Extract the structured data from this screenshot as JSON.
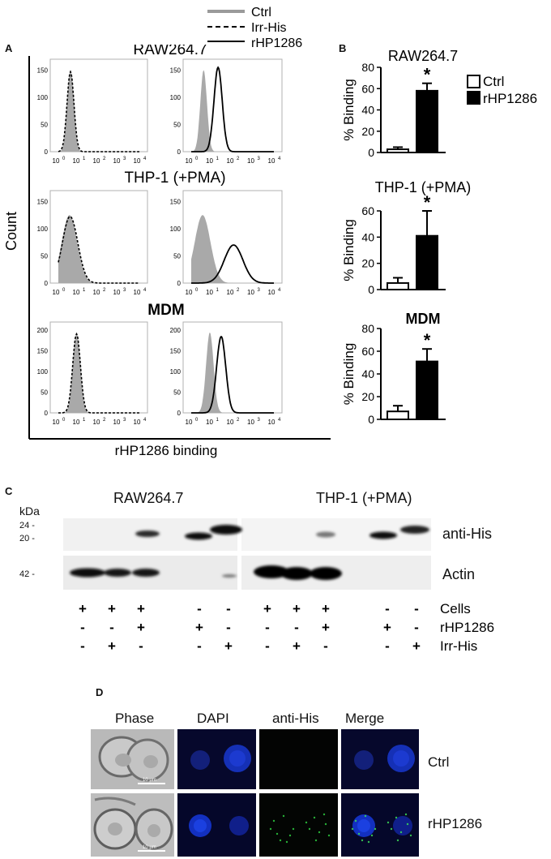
{
  "figure": {
    "panels": {
      "a": "A",
      "b": "B",
      "c": "C",
      "d": "D"
    },
    "legend_a": [
      "Ctrl",
      "Irr-His",
      "rHP1286"
    ],
    "panel_a": {
      "ylabel": "Count",
      "xlabel": "rHP1286 binding",
      "row_titles": [
        "RAW264.7",
        "THP-1 (+PMA)",
        "MDM"
      ],
      "y_ticks": [
        [
          "0",
          "50",
          "100",
          "150"
        ],
        [
          "0",
          "50",
          "100",
          "150"
        ],
        [
          "0",
          "50",
          "100",
          "150",
          "200"
        ]
      ],
      "x_tick_exponents": [
        "0",
        "1",
        "2",
        "3",
        "4"
      ]
    },
    "panel_c": {
      "kda": "kDa",
      "groups": [
        "RAW264.7",
        "THP-1 (+PMA)"
      ],
      "marker_labels": [
        "24 -",
        "20 -",
        "42 -"
      ],
      "blot_labels": [
        "anti-His",
        "Actin"
      ],
      "row_labels": [
        "Cells",
        "rHP1286",
        "Irr-His"
      ],
      "signs": [
        [
          "+",
          "+",
          "+",
          "",
          "-",
          "-",
          "",
          "+",
          "+",
          "+",
          "",
          "-",
          "-"
        ],
        [
          "-",
          "-",
          "+",
          "",
          "+",
          "-",
          "",
          "-",
          "-",
          "+",
          "",
          "+",
          "-"
        ],
        [
          "-",
          "+",
          "-",
          "",
          "-",
          "+",
          "",
          "-",
          "+",
          "-",
          "",
          "-",
          "+"
        ]
      ]
    },
    "panel_d": {
      "columns": [
        "Phase",
        "DAPI",
        "anti-His",
        "Merge"
      ],
      "rows": [
        "Ctrl",
        "rHP1286"
      ],
      "scale_bar": "10 µm"
    }
  },
  "chart_data": [
    {
      "type": "bar",
      "title": "RAW264.7",
      "ylabel": "% Binding",
      "categories": [
        "Ctrl",
        "rHP1286"
      ],
      "values": [
        3,
        58
      ],
      "errors": [
        2,
        7
      ],
      "ylim": [
        0,
        80
      ],
      "yticks": [
        0,
        20,
        40,
        60,
        80
      ],
      "significance": [
        "",
        "*"
      ],
      "legend": [
        "Ctrl",
        "rHP1286"
      ],
      "colors": [
        "#ffffff",
        "#000000"
      ]
    },
    {
      "type": "bar",
      "title": "THP-1 (+PMA)",
      "ylabel": "% Binding",
      "categories": [
        "Ctrl",
        "rHP1286"
      ],
      "values": [
        5,
        41
      ],
      "errors": [
        4,
        19
      ],
      "ylim": [
        0,
        60
      ],
      "yticks": [
        0,
        20,
        40,
        60
      ],
      "significance": [
        "",
        "*"
      ],
      "colors": [
        "#ffffff",
        "#000000"
      ]
    },
    {
      "type": "bar",
      "title": "MDM",
      "ylabel": "% Binding",
      "categories": [
        "Ctrl",
        "rHP1286"
      ],
      "values": [
        7,
        51
      ],
      "errors": [
        5,
        11
      ],
      "ylim": [
        0,
        80
      ],
      "yticks": [
        0,
        20,
        40,
        60,
        80
      ],
      "significance": [
        "",
        "*"
      ],
      "colors": [
        "#ffffff",
        "#000000"
      ]
    }
  ]
}
